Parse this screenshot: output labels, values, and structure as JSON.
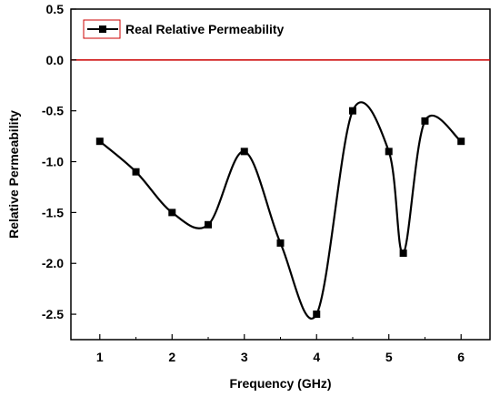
{
  "chart_data": {
    "type": "line",
    "xlabel": "Frequency (GHz)",
    "ylabel": "Relative Permeability",
    "xlim": [
      0.6,
      6.4
    ],
    "ylim": [
      -2.75,
      0.5
    ],
    "xticks": [
      1,
      2,
      3,
      4,
      5,
      6
    ],
    "yticks": [
      0.5,
      0.0,
      -0.5,
      -1.0,
      -1.5,
      -2.0,
      -2.5
    ],
    "ytick_labels": [
      "0.5",
      "0.0",
      "-0.5",
      "-1.0",
      "-1.5",
      "-2.0",
      "-2.5"
    ],
    "grid": false,
    "legend_position": "top-left",
    "reference_line": {
      "y": 0.0,
      "color": "#cc0000"
    },
    "series": [
      {
        "name": "Real Relative Permeability",
        "color": "#000000",
        "marker": "square",
        "x": [
          1.0,
          1.5,
          2.0,
          2.5,
          3.0,
          3.5,
          4.0,
          4.5,
          5.0,
          5.2,
          5.5,
          6.0
        ],
        "y": [
          -0.8,
          -1.1,
          -1.5,
          -1.62,
          -0.9,
          -1.8,
          -2.5,
          -0.5,
          -0.9,
          -1.9,
          -0.6,
          -0.8
        ]
      }
    ],
    "legend_box_color": "#cc0000"
  }
}
